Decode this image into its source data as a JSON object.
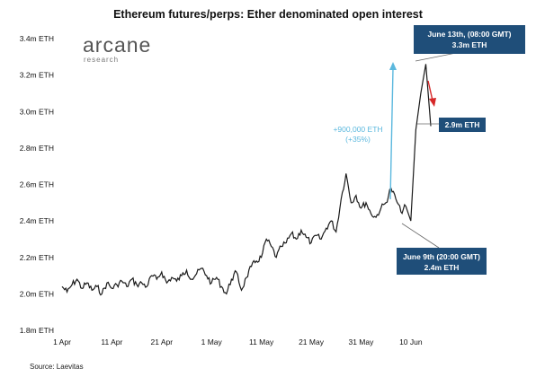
{
  "page": {
    "title": "Ethereum futures/perps: Ether denominated open interest",
    "source": "Source: Laevitas"
  },
  "logo": {
    "name": "arcane",
    "subtitle": "research"
  },
  "colors": {
    "line": "#1a1a1a",
    "callout_bg": "#1f4e79",
    "up_arrow": "#5bb8de",
    "down_arrow": "#d62728",
    "leader": "#666666"
  },
  "callouts": {
    "peak_line1": "June 13th, (08:00 GMT)",
    "peak_line2": "3.3m ETH",
    "current": "2.9m ETH",
    "low_line1": "June 9th (20:00 GMT)",
    "low_line2": "2.4m ETH"
  },
  "annotation": {
    "line1": "+900,000 ETH",
    "line2": "(+35%)"
  },
  "chart_data": {
    "type": "line",
    "title": "Ethereum futures/perps: Ether denominated open interest",
    "xlabel": "",
    "ylabel": "",
    "x_start": "2021-04-01",
    "x_end": "2021-06-14",
    "xlim": [
      "2021-04-01",
      "2021-06-14"
    ],
    "ylim": [
      1.8,
      3.4
    ],
    "y_ticks": [
      "1.8m ETH",
      "2.0m ETH",
      "2.2m ETH",
      "2.4m ETH",
      "2.6m ETH",
      "2.8m ETH",
      "3.0m ETH",
      "3.2m ETH",
      "3.4m ETH"
    ],
    "y_tick_values": [
      1.8,
      2.0,
      2.2,
      2.4,
      2.6,
      2.8,
      3.0,
      3.2,
      3.4
    ],
    "x_ticks": [
      "1 Apr",
      "11 Apr",
      "21 Apr",
      "1 May",
      "11 May",
      "21 May",
      "31 May",
      "10 Jun"
    ],
    "x_tick_dates": [
      "2021-04-01",
      "2021-04-11",
      "2021-04-21",
      "2021-05-01",
      "2021-05-11",
      "2021-05-21",
      "2021-05-31",
      "2021-06-10"
    ],
    "grid": false,
    "legend": "none",
    "series": [
      {
        "x": [
          "2021-04-01",
          "2021-04-02",
          "2021-04-03",
          "2021-04-04",
          "2021-04-05",
          "2021-04-06",
          "2021-04-07",
          "2021-04-08",
          "2021-04-09",
          "2021-04-10",
          "2021-04-11",
          "2021-04-12",
          "2021-04-13",
          "2021-04-14",
          "2021-04-15",
          "2021-04-16",
          "2021-04-17",
          "2021-04-18",
          "2021-04-19",
          "2021-04-20",
          "2021-04-21",
          "2021-04-22",
          "2021-04-23",
          "2021-04-24",
          "2021-04-25",
          "2021-04-26",
          "2021-04-27",
          "2021-04-28",
          "2021-04-29",
          "2021-04-30",
          "2021-05-01",
          "2021-05-02",
          "2021-05-03",
          "2021-05-04",
          "2021-05-05",
          "2021-05-06",
          "2021-05-07",
          "2021-05-08",
          "2021-05-09",
          "2021-05-10",
          "2021-05-11",
          "2021-05-12",
          "2021-05-13",
          "2021-05-14",
          "2021-05-15",
          "2021-05-16",
          "2021-05-17",
          "2021-05-18",
          "2021-05-19",
          "2021-05-20",
          "2021-05-21",
          "2021-05-22",
          "2021-05-23",
          "2021-05-24",
          "2021-05-25",
          "2021-05-26",
          "2021-05-27",
          "2021-05-28",
          "2021-05-29",
          "2021-05-30",
          "2021-05-31",
          "2021-06-01",
          "2021-06-02",
          "2021-06-03",
          "2021-06-04",
          "2021-06-05",
          "2021-06-06",
          "2021-06-07",
          "2021-06-08",
          "2021-06-09",
          "2021-06-10",
          "2021-06-11",
          "2021-06-12",
          "2021-06-13",
          "2021-06-14"
        ],
        "values": [
          2.04,
          2.01,
          2.05,
          2.08,
          2.03,
          2.06,
          2.02,
          2.04,
          2.0,
          2.06,
          2.03,
          2.05,
          2.07,
          2.04,
          2.08,
          2.05,
          2.06,
          2.04,
          2.1,
          2.08,
          2.12,
          2.06,
          2.09,
          2.07,
          2.1,
          2.13,
          2.08,
          2.11,
          2.14,
          2.1,
          2.06,
          2.09,
          2.04,
          2.0,
          2.08,
          2.12,
          2.02,
          2.09,
          2.15,
          2.18,
          2.2,
          2.3,
          2.26,
          2.2,
          2.26,
          2.28,
          2.33,
          2.3,
          2.35,
          2.31,
          2.28,
          2.32,
          2.3,
          2.36,
          2.4,
          2.34,
          2.52,
          2.66,
          2.5,
          2.54,
          2.47,
          2.5,
          2.44,
          2.42,
          2.47,
          2.5,
          2.58,
          2.52,
          2.45,
          2.48,
          2.4,
          2.9,
          3.1,
          3.26,
          2.92
        ]
      }
    ]
  }
}
